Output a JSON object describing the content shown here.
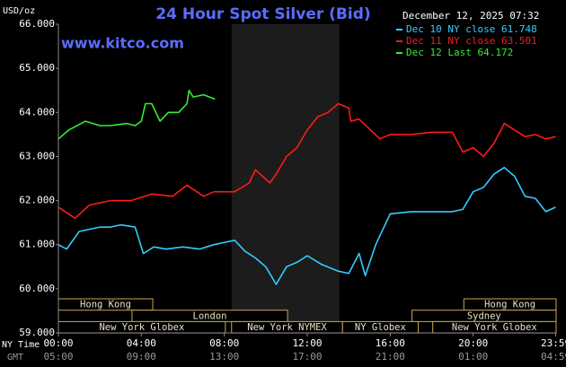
{
  "chart_data": {
    "type": "line",
    "title": "24 Hour Spot Silver (Bid)",
    "source": "www.kitco.com",
    "unit": "USD/oz",
    "timestamp": "December 12, 2025 07:32",
    "x_row_labels": [
      "NY Time",
      "GMT"
    ],
    "xlim": [
      0,
      24
    ],
    "xticks": [
      {
        "value": 0,
        "label": "00:00"
      },
      {
        "value": 4,
        "label": "04:00"
      },
      {
        "value": 8,
        "label": "08:00"
      },
      {
        "value": 12,
        "label": "12:00"
      },
      {
        "value": 16,
        "label": "16:00"
      },
      {
        "value": 20,
        "label": "20:00"
      },
      {
        "value": 23.98,
        "label": "23:59"
      }
    ],
    "gmt_labels": [
      "05:00",
      "09:00",
      "13:00",
      "17:00",
      "21:00",
      "01:00",
      "04:59"
    ],
    "ylim": [
      59,
      66
    ],
    "yticks": [
      {
        "value": 59,
        "label": "59.000"
      },
      {
        "value": 60,
        "label": "60.000"
      },
      {
        "value": 61,
        "label": "61.000"
      },
      {
        "value": 62,
        "label": "62.000"
      },
      {
        "value": 63,
        "label": "63.000"
      },
      {
        "value": 64,
        "label": "64.000"
      },
      {
        "value": 65,
        "label": "65.000"
      },
      {
        "value": 66,
        "label": "66.000"
      }
    ],
    "highlight_range": [
      8.35,
      13.55
    ],
    "sessions": [
      {
        "label": "Hong Kong",
        "start": 0,
        "end": 4.55,
        "row": 0
      },
      {
        "label": "Hong Kong",
        "start": 19.55,
        "end": 24,
        "row": 0
      },
      {
        "label": "London",
        "start": 3.55,
        "end": 11.05,
        "row": 1
      },
      {
        "label": "Sydney",
        "start": 17.05,
        "end": 24,
        "row": 1
      },
      {
        "label": "New York Globex",
        "start": 0,
        "end": 8.05,
        "row": 2
      },
      {
        "label": "New York NYMEX",
        "start": 8.35,
        "end": 13.7,
        "row": 2
      },
      {
        "label": "NY Globex",
        "start": 13.7,
        "end": 17.35,
        "row": 2
      },
      {
        "label": "New York Globex",
        "start": 18.05,
        "end": 24,
        "row": 2
      }
    ],
    "series": [
      {
        "name": "Dec 10 NY close 61.748",
        "color": "#33ccff",
        "x": [
          0,
          0.4,
          1,
          1.5,
          2,
          2.5,
          3,
          3.7,
          4.1,
          4.6,
          5.2,
          6,
          6.8,
          7.5,
          8.5,
          9,
          9.5,
          10,
          10.5,
          11,
          11.5,
          12,
          12.7,
          13.5,
          14,
          14.5,
          14.8,
          15.3,
          16,
          17,
          18,
          19,
          19.5,
          20,
          20.5,
          21,
          21.5,
          22,
          22.5,
          23,
          23.5,
          23.98
        ],
        "values": [
          61.0,
          60.9,
          61.3,
          61.35,
          61.4,
          61.4,
          61.45,
          61.4,
          60.8,
          60.95,
          60.9,
          60.95,
          60.9,
          61.0,
          61.1,
          60.85,
          60.7,
          60.5,
          60.1,
          60.5,
          60.6,
          60.75,
          60.55,
          60.4,
          60.35,
          60.8,
          60.3,
          61.0,
          61.7,
          61.75,
          61.75,
          61.75,
          61.8,
          62.2,
          62.3,
          62.6,
          62.75,
          62.55,
          62.1,
          62.05,
          61.75,
          61.85
        ]
      },
      {
        "name": "Dec 11 NY close 63.501",
        "color": "#ff1a1a",
        "x": [
          0,
          0.8,
          1.5,
          2.5,
          3.5,
          4.5,
          5.5,
          6.2,
          7,
          7.5,
          8.5,
          9.2,
          9.5,
          10.2,
          10.5,
          11,
          11.5,
          12,
          12.5,
          13,
          13.5,
          14,
          14.1,
          14.5,
          15.5,
          16,
          17,
          18,
          19,
          19.5,
          20,
          20.5,
          21,
          21.5,
          22,
          22.5,
          23,
          23.5,
          23.98
        ],
        "values": [
          61.85,
          61.6,
          61.9,
          62.0,
          62.0,
          62.15,
          62.1,
          62.35,
          62.1,
          62.2,
          62.2,
          62.4,
          62.7,
          62.4,
          62.6,
          63.0,
          63.2,
          63.6,
          63.9,
          64.0,
          64.2,
          64.1,
          63.8,
          63.85,
          63.4,
          63.5,
          63.5,
          63.55,
          63.55,
          63.1,
          63.2,
          63.0,
          63.3,
          63.75,
          63.6,
          63.45,
          63.5,
          63.4,
          63.45
        ]
      },
      {
        "name": "Dec 12 Last 64.172",
        "color": "#33ee33",
        "x": [
          0,
          0.5,
          1.3,
          2,
          2.5,
          3.3,
          3.7,
          4,
          4.2,
          4.5,
          4.9,
          5.3,
          5.8,
          6.2,
          6.3,
          6.5,
          7,
          7.55
        ],
        "values": [
          63.4,
          63.6,
          63.8,
          63.7,
          63.7,
          63.75,
          63.7,
          63.8,
          64.2,
          64.2,
          63.8,
          64.0,
          64.0,
          64.2,
          64.5,
          64.35,
          64.4,
          64.3
        ]
      }
    ]
  }
}
